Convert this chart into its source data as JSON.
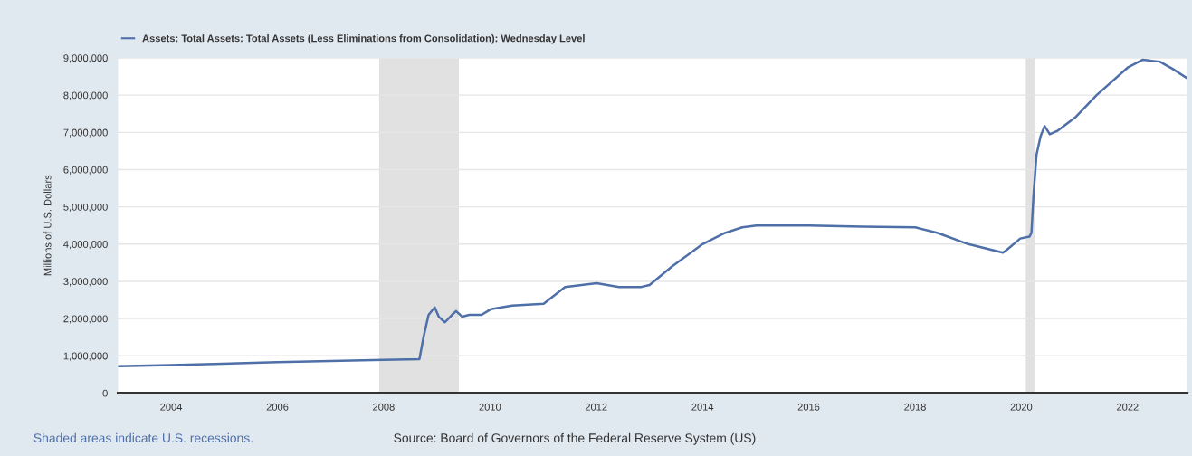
{
  "chart_data": {
    "type": "line",
    "ylabel": "Millions of U.S. Dollars",
    "legend": "top left",
    "grid": "y",
    "x": [
      "2003-01-01",
      "2004-01-01",
      "2006-01-01",
      "2008-01-01",
      "2008-09-03",
      "2008-10-01",
      "2008-11-05",
      "2008-12-17",
      "2009-01-14",
      "2009-02-25",
      "2009-04-15",
      "2009-05-13",
      "2009-06-24",
      "2009-08-12",
      "2009-11-04",
      "2010-01-06",
      "2010-06-02",
      "2011-01-05",
      "2011-06-01",
      "2012-01-04",
      "2012-06-06",
      "2012-11-07",
      "2013-01-02",
      "2013-06-05",
      "2014-01-01",
      "2014-06-04",
      "2014-10-01",
      "2015-01-07",
      "2016-01-06",
      "2017-01-04",
      "2018-01-03",
      "2018-06-06",
      "2019-01-02",
      "2019-08-28",
      "2019-09-25",
      "2019-12-25",
      "2020-02-26",
      "2020-03-11",
      "2020-03-25",
      "2020-04-15",
      "2020-05-13",
      "2020-06-10",
      "2020-07-15",
      "2020-09-09",
      "2021-01-06",
      "2021-06-02",
      "2022-01-05",
      "2022-04-13",
      "2022-08-10",
      "2022-11-09",
      "2023-02-15"
    ],
    "series": [
      {
        "name": "Assets: Total Assets: Total Assets (Less Eliminations from Consolidation): Wednesday Level",
        "color": "#4e6fa8",
        "values": [
          720000,
          750000,
          830000,
          890000,
          910000,
          1500000,
          2100000,
          2300000,
          2050000,
          1900000,
          2100000,
          2200000,
          2050000,
          2100000,
          2100000,
          2250000,
          2350000,
          2400000,
          2850000,
          2950000,
          2850000,
          2850000,
          2900000,
          3400000,
          4000000,
          4300000,
          4450000,
          4500000,
          4500000,
          4470000,
          4450000,
          4300000,
          4000000,
          3770000,
          3850000,
          4150000,
          4200000,
          4300000,
          5300000,
          6400000,
          6900000,
          7170000,
          6950000,
          7050000,
          7400000,
          8000000,
          8750000,
          8950000,
          8900000,
          8700000,
          8450000
        ]
      }
    ],
    "xlim": [
      "2003-01-01",
      "2023-02-15"
    ],
    "xticks": [
      {
        "value": "2004-01-01",
        "label": "2004"
      },
      {
        "value": "2006-01-01",
        "label": "2006"
      },
      {
        "value": "2008-01-01",
        "label": "2008"
      },
      {
        "value": "2010-01-01",
        "label": "2010"
      },
      {
        "value": "2012-01-01",
        "label": "2012"
      },
      {
        "value": "2014-01-01",
        "label": "2014"
      },
      {
        "value": "2016-01-01",
        "label": "2016"
      },
      {
        "value": "2018-01-01",
        "label": "2018"
      },
      {
        "value": "2020-01-01",
        "label": "2020"
      },
      {
        "value": "2022-01-01",
        "label": "2022"
      }
    ],
    "ylim": [
      0,
      9000000
    ],
    "yticks": [
      0,
      {
        "value": 1000000,
        "label": "1,000,000"
      },
      {
        "value": 2000000,
        "label": "2,000,000"
      },
      {
        "value": 3000000,
        "label": "3,000,000"
      },
      {
        "value": 4000000,
        "label": "4,000,000"
      },
      {
        "value": 5000000,
        "label": "5,000,000"
      },
      {
        "value": 6000000,
        "label": "6,000,000"
      },
      {
        "value": 7000000,
        "label": "7,000,000"
      },
      {
        "value": 8000000,
        "label": "8,000,000"
      },
      {
        "value": 9000000,
        "label": "9,000,000"
      }
    ],
    "bands": [
      {
        "axis": "x",
        "from": "2007-12-01",
        "to": "2009-06-01",
        "color": "#e1e1e1"
      },
      {
        "axis": "x",
        "from": "2020-02-01",
        "to": "2020-04-01",
        "color": "#e1e1e1"
      }
    ],
    "annotations": [
      "Shaded areas indicate U.S. recessions.",
      "Source: Board of Governors of the Federal Reserve System (US)"
    ]
  }
}
